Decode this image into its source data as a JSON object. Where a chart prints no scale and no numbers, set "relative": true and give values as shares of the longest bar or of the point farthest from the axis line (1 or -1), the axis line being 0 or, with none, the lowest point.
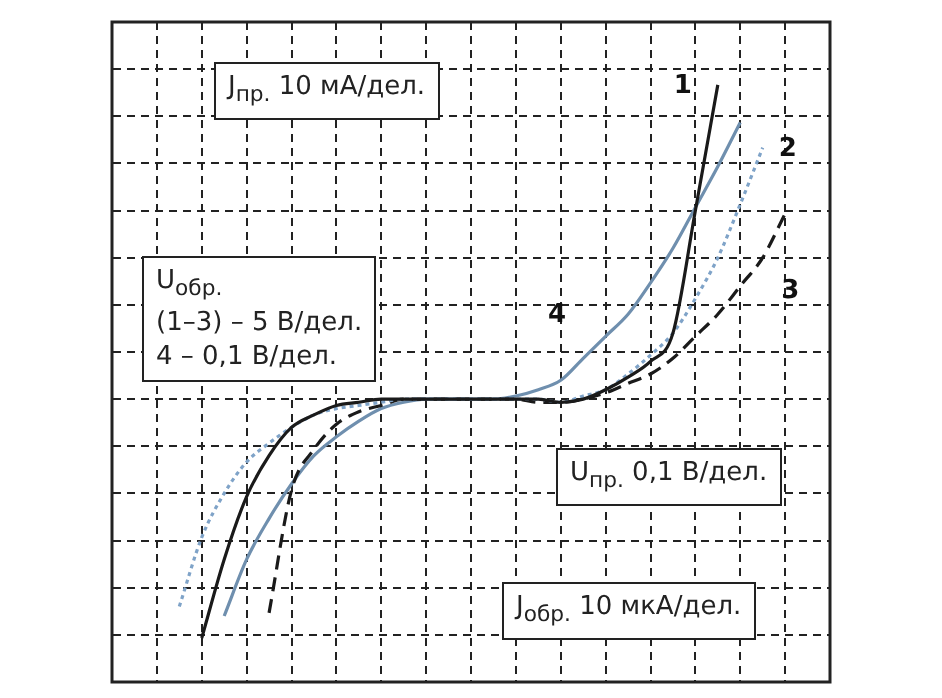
{
  "chart_data": {
    "type": "line",
    "relative": true,
    "grid": true,
    "marker": "none",
    "categories": [
      null,
      null,
      null,
      null,
      null,
      null,
      null,
      null,
      null,
      null,
      null,
      null,
      null,
      null,
      null,
      null,
      null,
      null,
      null,
      null,
      null,
      null,
      null,
      null,
      null,
      null,
      null,
      null,
      null,
      null,
      null,
      null,
      null
    ],
    "series": [
      {
        "name": "1",
        "color": "#1a1a1a",
        "line_style": "solid",
        "values": [
          null,
          null,
          null,
          null,
          -0.76,
          -0.51,
          -0.31,
          -0.18,
          -0.09,
          -0.05,
          -0.02,
          -0.01,
          0,
          0,
          0,
          0,
          0,
          0,
          0,
          0,
          -0.01,
          0,
          0.03,
          0.07,
          0.12,
          0.21,
          0.6,
          1,
          null,
          null,
          null,
          null,
          null
        ]
      },
      {
        "name": "2",
        "color": "#7fa3c8",
        "line_style": "dotted",
        "values": [
          null,
          null,
          null,
          -0.66,
          -0.44,
          -0.3,
          -0.2,
          -0.14,
          -0.09,
          -0.05,
          -0.03,
          -0.02,
          -0.01,
          0,
          0,
          0,
          0,
          0,
          0,
          0,
          -0.01,
          0.01,
          0.03,
          0.08,
          0.14,
          0.21,
          0.32,
          0.45,
          0.62,
          0.8,
          null,
          null,
          null
        ]
      },
      {
        "name": "3",
        "color": "#1a1a1a",
        "line_style": "dashed",
        "values": [
          null,
          null,
          null,
          null,
          null,
          null,
          null,
          -0.68,
          -0.29,
          -0.16,
          -0.08,
          -0.04,
          -0.02,
          0,
          0,
          0,
          0,
          0,
          0,
          -0.01,
          -0.01,
          0,
          0.02,
          0.05,
          0.08,
          0.13,
          0.2,
          0.27,
          0.36,
          0.45,
          0.59,
          null,
          null
        ]
      },
      {
        "name": "4",
        "color": "#6f8fae",
        "line_style": "solid",
        "values": [
          null,
          null,
          null,
          null,
          null,
          -0.69,
          -0.51,
          -0.38,
          -0.27,
          -0.18,
          -0.12,
          -0.07,
          -0.03,
          -0.01,
          0,
          0,
          0,
          0,
          0.01,
          0.03,
          0.06,
          0.13,
          0.2,
          0.27,
          0.37,
          0.48,
          0.61,
          0.74,
          0.88,
          null,
          null,
          null,
          null
        ]
      }
    ],
    "annotations": [
      "J$_{пр.}$ 10 мА/дел.",
      "U$_{обр.}$\n(1–3) – 5 В/дел.\n4 – 0,1 В/дел.",
      "U$_{пр.}$ 0,1 В/дел.",
      "J$_{обр.}$ 10 мкА/дел."
    ]
  }
}
